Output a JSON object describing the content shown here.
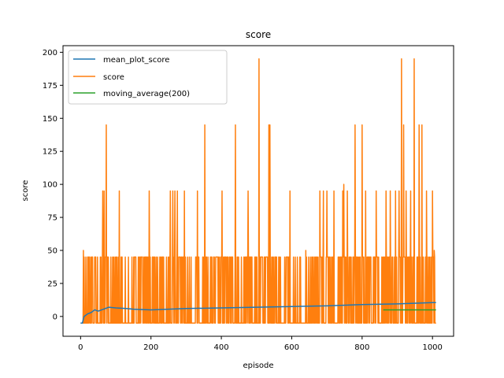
{
  "chart_data": {
    "type": "line",
    "title": "score",
    "xlabel": "episode",
    "ylabel": "score",
    "xlim": [
      -50,
      1060
    ],
    "ylim": [
      -15,
      205
    ],
    "xticks": [
      0,
      200,
      400,
      600,
      800,
      1000
    ],
    "yticks": [
      0,
      25,
      50,
      75,
      100,
      125,
      150,
      175,
      200
    ],
    "grid": false,
    "legend_position": "upper-left",
    "score_distribution": {
      "episodes": 1010,
      "base_value": -5,
      "common_value": 45,
      "spikes": [
        {
          "x": 8,
          "y": 50
        },
        {
          "x": 63,
          "y": 95
        },
        {
          "x": 67,
          "y": 95
        },
        {
          "x": 73,
          "y": 145
        },
        {
          "x": 110,
          "y": 95
        },
        {
          "x": 195,
          "y": 95
        },
        {
          "x": 255,
          "y": 95
        },
        {
          "x": 262,
          "y": 95
        },
        {
          "x": 268,
          "y": 95
        },
        {
          "x": 275,
          "y": 95
        },
        {
          "x": 295,
          "y": 95
        },
        {
          "x": 332,
          "y": 95
        },
        {
          "x": 353,
          "y": 145
        },
        {
          "x": 402,
          "y": 95
        },
        {
          "x": 440,
          "y": 145
        },
        {
          "x": 476,
          "y": 95
        },
        {
          "x": 507,
          "y": 195
        },
        {
          "x": 535,
          "y": 145
        },
        {
          "x": 538,
          "y": 145
        },
        {
          "x": 595,
          "y": 95
        },
        {
          "x": 640,
          "y": 50
        },
        {
          "x": 680,
          "y": 95
        },
        {
          "x": 690,
          "y": 95
        },
        {
          "x": 700,
          "y": 95
        },
        {
          "x": 720,
          "y": 95
        },
        {
          "x": 745,
          "y": 95
        },
        {
          "x": 748,
          "y": 100
        },
        {
          "x": 758,
          "y": 95
        },
        {
          "x": 780,
          "y": 145
        },
        {
          "x": 800,
          "y": 145
        },
        {
          "x": 810,
          "y": 95
        },
        {
          "x": 840,
          "y": 95
        },
        {
          "x": 868,
          "y": 95
        },
        {
          "x": 880,
          "y": 95
        },
        {
          "x": 895,
          "y": 95
        },
        {
          "x": 905,
          "y": 95
        },
        {
          "x": 912,
          "y": 195
        },
        {
          "x": 918,
          "y": 145
        },
        {
          "x": 925,
          "y": 95
        },
        {
          "x": 938,
          "y": 95
        },
        {
          "x": 948,
          "y": 195
        },
        {
          "x": 962,
          "y": 145
        },
        {
          "x": 970,
          "y": 145
        },
        {
          "x": 983,
          "y": 95
        },
        {
          "x": 1000,
          "y": 95
        },
        {
          "x": 1005,
          "y": 50
        }
      ]
    },
    "series": [
      {
        "name": "mean_plot_score",
        "color": "#1f77b4",
        "x": [
          0,
          5,
          10,
          20,
          30,
          40,
          50,
          60,
          70,
          80,
          100,
          130,
          150,
          200,
          250,
          300,
          400,
          500,
          600,
          700,
          800,
          900,
          1000,
          1010
        ],
        "y": [
          -5,
          -5,
          0,
          2,
          3,
          5,
          4,
          5,
          6,
          7,
          6.5,
          6,
          5.5,
          5,
          5.5,
          6,
          6.5,
          7,
          7.5,
          8,
          9,
          9.5,
          10.5,
          10.5
        ]
      },
      {
        "name": "score",
        "color": "#ff7f0e"
      },
      {
        "name": "moving_average(200)",
        "color": "#2ca02c",
        "x": [
          860,
          1010
        ],
        "y": [
          5,
          5
        ]
      }
    ]
  }
}
